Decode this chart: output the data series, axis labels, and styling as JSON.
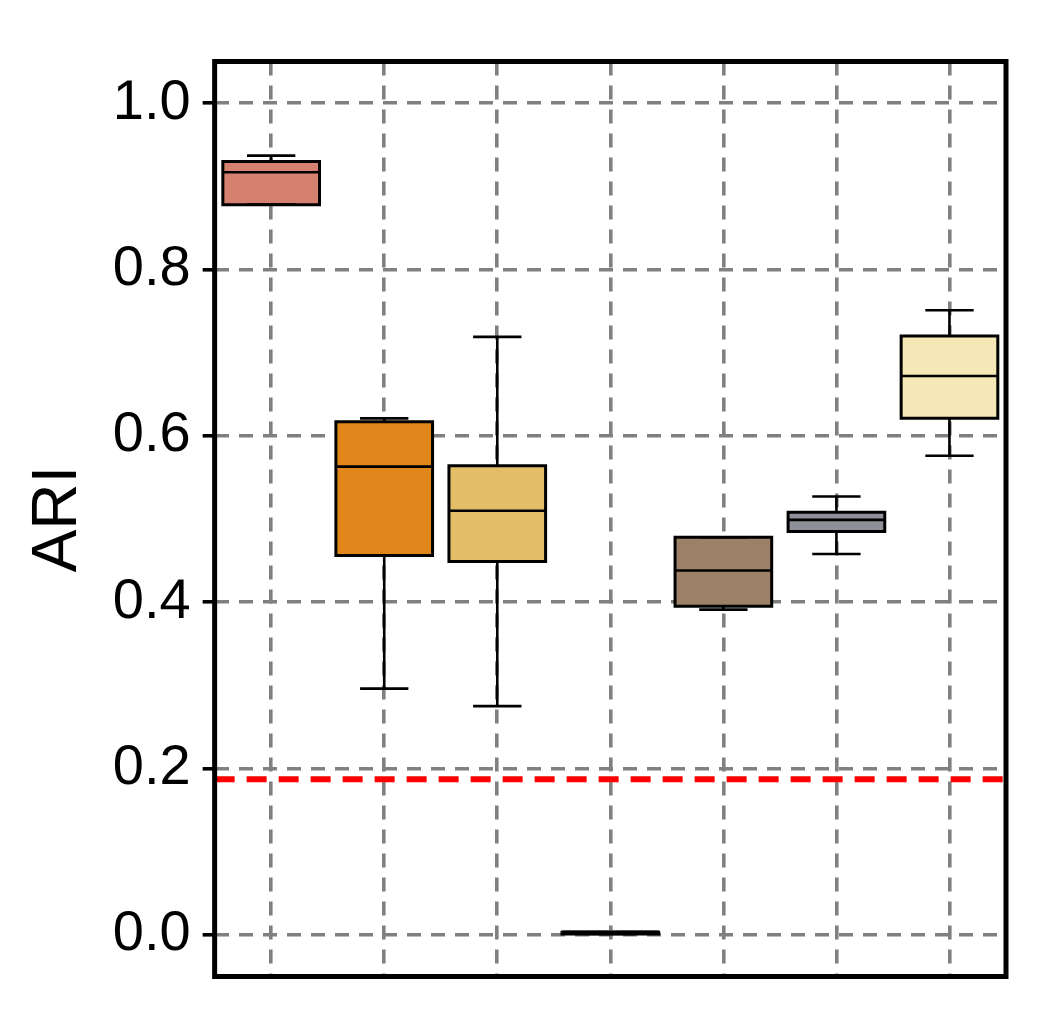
{
  "chart_data": {
    "type": "box",
    "ylabel": "ARI",
    "categories": [
      null,
      null,
      null,
      null,
      null,
      null,
      null
    ],
    "boxes": [
      {
        "low": 0.878,
        "q1": 0.878,
        "median": 0.917,
        "q3": 0.93,
        "high": 0.937
      },
      {
        "low": 0.296,
        "q1": 0.456,
        "median": 0.563,
        "q3": 0.617,
        "high": 0.621
      },
      {
        "low": 0.275,
        "q1": 0.449,
        "median": 0.51,
        "q3": 0.564,
        "high": 0.719
      },
      {
        "low": 0.001,
        "q1": 0.001,
        "median": 0.002,
        "q3": 0.003,
        "high": 0.003
      },
      {
        "low": 0.391,
        "q1": 0.395,
        "median": 0.438,
        "q3": 0.478,
        "high": 0.478
      },
      {
        "low": 0.458,
        "q1": 0.485,
        "median": 0.499,
        "q3": 0.508,
        "high": 0.527
      },
      {
        "low": 0.576,
        "q1": 0.621,
        "median": 0.672,
        "q3": 0.72,
        "high": 0.751
      }
    ],
    "colors": [
      "#d4826f",
      "#e0861b",
      "#e3bd67",
      "#6b6b6b",
      "#9c8068",
      "#8f9099",
      "#f5e8b6"
    ],
    "ylim": [
      -0.05,
      1.05
    ],
    "yticks": [
      {
        "value": 0,
        "label": "0.0"
      },
      {
        "value": 0.2,
        "label": "0.2"
      },
      {
        "value": 0.4,
        "label": "0.4"
      },
      {
        "value": 0.6,
        "label": "0.6"
      },
      {
        "value": 0.8,
        "label": "0.8"
      },
      {
        "value": 1,
        "label": "1.0"
      }
    ],
    "ref_lines": [
      {
        "axis": "y",
        "value": 0.187,
        "color": "#ff0000",
        "line_style": "dashed"
      }
    ],
    "grid": true,
    "tick_labels": "y",
    "legend": false
  }
}
